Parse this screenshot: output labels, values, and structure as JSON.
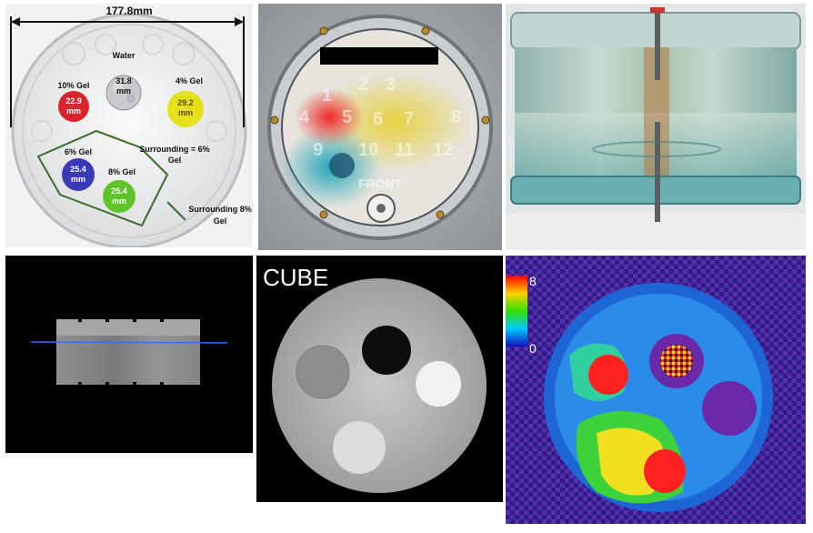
{
  "diagram": {
    "diameter": "177.8mm",
    "water_label": "Water",
    "water_size": "31.8 mm",
    "gel10_label": "10% Gel",
    "gel10_size": "22.9 mm",
    "gel4_label": "4% Gel",
    "gel4_size": "29.2 mm",
    "gel6_label": "6% Gel",
    "gel6_size": "25.4 mm",
    "gel8_label": "8% Gel",
    "gel8_size": "25.4 mm",
    "surround6": "Surrounding = 6% Gel",
    "surround8": "Surrounding 8% Gel"
  },
  "photo_top": {
    "numbers": [
      "1",
      "2",
      "3",
      "4",
      "5",
      "6",
      "7",
      "8",
      "9",
      "10",
      "11",
      "12"
    ],
    "front": "FRONT"
  },
  "cube": {
    "title": "CUBE"
  },
  "colormap": {
    "max": "8",
    "min": "0"
  },
  "colors": {
    "gel10": "#d9242b",
    "gel4": "#e4e11c",
    "gel6": "#3a3ab8",
    "gel8": "#5ec42a",
    "outline": "#3d6b2a"
  }
}
